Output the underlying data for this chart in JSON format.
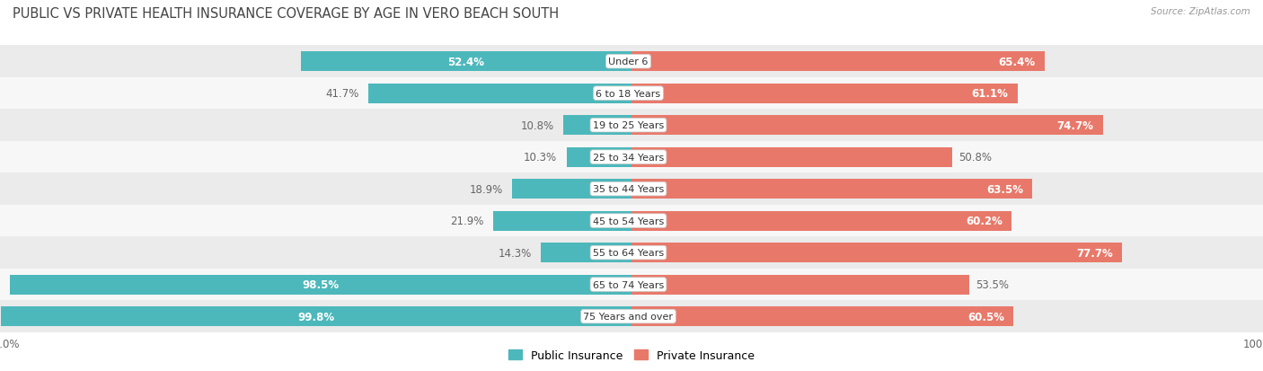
{
  "title": "PUBLIC VS PRIVATE HEALTH INSURANCE COVERAGE BY AGE IN VERO BEACH SOUTH",
  "source": "Source: ZipAtlas.com",
  "categories": [
    "Under 6",
    "6 to 18 Years",
    "19 to 25 Years",
    "25 to 34 Years",
    "35 to 44 Years",
    "45 to 54 Years",
    "55 to 64 Years",
    "65 to 74 Years",
    "75 Years and over"
  ],
  "public_values": [
    52.4,
    41.7,
    10.8,
    10.3,
    18.9,
    21.9,
    14.3,
    98.5,
    99.8
  ],
  "private_values": [
    65.4,
    61.1,
    74.7,
    50.8,
    63.5,
    60.2,
    77.7,
    53.5,
    60.5
  ],
  "public_color": "#4db8bb",
  "public_color_light": "#7dd0d2",
  "private_color": "#e8796a",
  "private_color_light": "#f0a898",
  "row_bg_even": "#ebebeb",
  "row_bg_odd": "#f7f7f7",
  "max_value": 100.0,
  "bar_height": 0.62,
  "legend_public": "Public Insurance",
  "legend_private": "Private Insurance",
  "title_fontsize": 10.5,
  "label_fontsize": 8.5,
  "category_fontsize": 8.0,
  "xlabel_fontsize": 8.5,
  "white_label_threshold_pub": 50.0,
  "white_label_threshold_priv": 60.0
}
